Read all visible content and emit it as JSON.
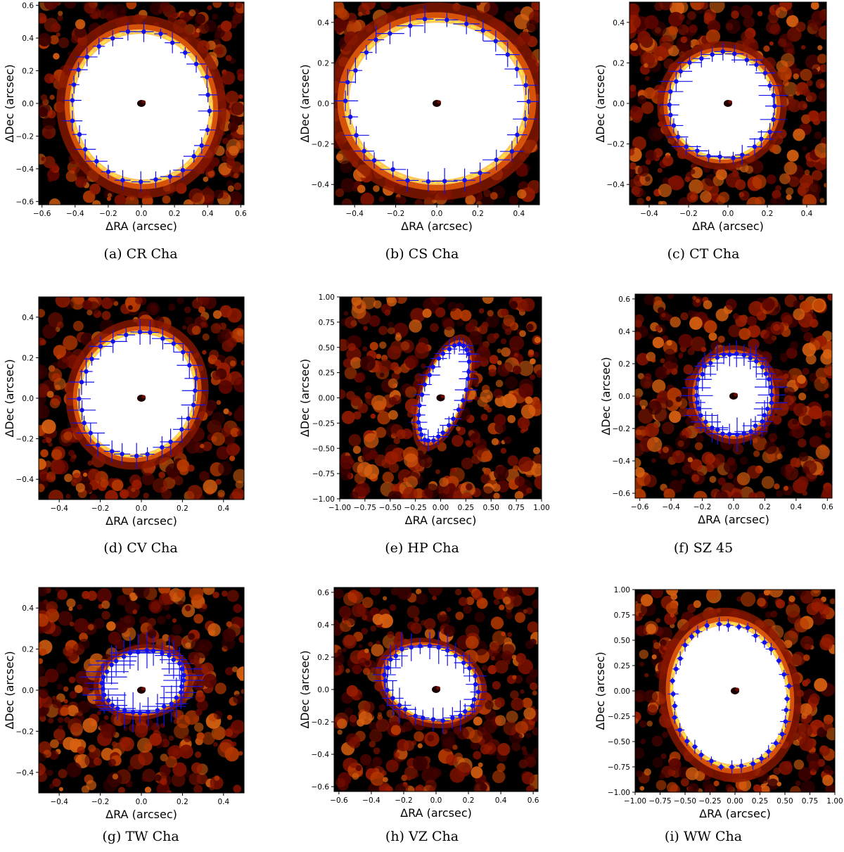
{
  "colors": {
    "ellipse": "#ffef3a",
    "points": "#1010ee",
    "cmap_dark": "#000000",
    "cmap_mid": "#b51a00",
    "cmap_light": "#ffffff"
  },
  "chart_data": [
    {
      "type": "image-scatter",
      "caption": "(a) CR Cha",
      "xlabel": "ΔRA (arcsec)",
      "ylabel": "ΔDec (arcsec)",
      "xlim": [
        -0.62,
        0.62
      ],
      "ylim": [
        -0.62,
        0.62
      ],
      "xticks": [
        -0.6,
        -0.4,
        -0.2,
        0.0,
        0.2,
        0.4,
        0.6
      ],
      "yticks": [
        -0.6,
        -0.4,
        -0.2,
        0.0,
        0.2,
        0.4,
        0.6
      ],
      "ellipse": {
        "center": [
          0.0,
          -0.02
        ],
        "a": 0.42,
        "b": 0.46,
        "angle_deg": 10
      },
      "points": 28,
      "xerr": 0.05,
      "yerr": 0.05
    },
    {
      "type": "image-scatter",
      "caption": "(b) CS Cha",
      "xlabel": "ΔRA (arcsec)",
      "ylabel": "ΔDec (arcsec)",
      "xlim": [
        -0.5,
        0.5
      ],
      "ylim": [
        -0.5,
        0.5
      ],
      "xticks": [
        -0.4,
        -0.2,
        0.0,
        0.2,
        0.4
      ],
      "yticks": [
        -0.4,
        -0.2,
        0.0,
        0.2,
        0.4
      ],
      "ellipse": {
        "center": [
          0.0,
          0.01
        ],
        "a": 0.44,
        "b": 0.4,
        "angle_deg": 0
      },
      "points": 30,
      "xerr": 0.05,
      "yerr": 0.05
    },
    {
      "type": "image-scatter",
      "caption": "(c) CT Cha",
      "xlabel": "ΔRA (arcsec)",
      "ylabel": "ΔDec (arcsec)",
      "xlim": [
        -0.5,
        0.5
      ],
      "ylim": [
        -0.5,
        0.5
      ],
      "xticks": [
        -0.4,
        -0.2,
        0.0,
        0.2,
        0.4
      ],
      "yticks": [
        -0.4,
        -0.2,
        0.0,
        0.2,
        0.4
      ],
      "ellipse": {
        "center": [
          -0.03,
          -0.01
        ],
        "a": 0.27,
        "b": 0.26,
        "angle_deg": -15
      },
      "points": 28,
      "xerr": 0.06,
      "yerr": 0.04
    },
    {
      "type": "image-scatter",
      "caption": "(d) CV Cha",
      "xlabel": "ΔRA (arcsec)",
      "ylabel": "ΔDec (arcsec)",
      "xlim": [
        -0.5,
        0.5
      ],
      "ylim": [
        -0.5,
        0.5
      ],
      "xticks": [
        -0.4,
        -0.2,
        0.0,
        0.2,
        0.4
      ],
      "yticks": [
        -0.4,
        -0.2,
        0.0,
        0.2,
        0.4
      ],
      "ellipse": {
        "center": [
          -0.02,
          0.02
        ],
        "a": 0.28,
        "b": 0.31,
        "angle_deg": -25
      },
      "points": 28,
      "xerr": 0.05,
      "yerr": 0.05
    },
    {
      "type": "image-scatter",
      "caption": "(e) HP Cha",
      "xlabel": "ΔRA (arcsec)",
      "ylabel": "ΔDec (arcsec)",
      "xlim": [
        -1.0,
        1.0
      ],
      "ylim": [
        -1.0,
        1.0
      ],
      "xticks": [
        -1.0,
        -0.75,
        -0.5,
        -0.25,
        0.0,
        0.25,
        0.5,
        0.75,
        1.0
      ],
      "yticks": [
        -1.0,
        -0.75,
        -0.5,
        -0.25,
        0.0,
        0.25,
        0.5,
        0.75,
        1.0
      ],
      "ellipse": {
        "center": [
          0.03,
          0.05
        ],
        "a": 0.2,
        "b": 0.5,
        "angle_deg": -20
      },
      "points": 30,
      "xerr": 0.08,
      "yerr": 0.08
    },
    {
      "type": "image-scatter",
      "caption": "(f) SZ 45",
      "xlabel": "ΔRA (arcsec)",
      "ylabel": "ΔDec (arcsec)",
      "xlim": [
        -0.63,
        0.63
      ],
      "ylim": [
        -0.63,
        0.63
      ],
      "xticks": [
        -0.6,
        -0.4,
        -0.2,
        0.0,
        0.2,
        0.4,
        0.6
      ],
      "yticks": [
        -0.6,
        -0.4,
        -0.2,
        0.0,
        0.2,
        0.4,
        0.6
      ],
      "ellipse": {
        "center": [
          0.0,
          0.01
        ],
        "a": 0.24,
        "b": 0.25,
        "angle_deg": 0
      },
      "points": 34,
      "xerr": 0.08,
      "yerr": 0.08
    },
    {
      "type": "image-scatter",
      "caption": "(g) TW Cha",
      "xlabel": "ΔRA (arcsec)",
      "ylabel": "ΔDec (arcsec)",
      "xlim": [
        -0.5,
        0.5
      ],
      "ylim": [
        -0.5,
        0.5
      ],
      "xticks": [
        -0.4,
        -0.2,
        0.0,
        0.2,
        0.4
      ],
      "yticks": [
        -0.4,
        -0.2,
        0.0,
        0.2,
        0.4
      ],
      "ellipse": {
        "center": [
          0.01,
          0.04
        ],
        "a": 0.2,
        "b": 0.15,
        "angle_deg": 10
      },
      "points": 32,
      "xerr": 0.09,
      "yerr": 0.07
    },
    {
      "type": "image-scatter",
      "caption": "(h) VZ Cha",
      "xlabel": "ΔRA (arcsec)",
      "ylabel": "ΔDec (arcsec)",
      "xlim": [
        -0.63,
        0.63
      ],
      "ylim": [
        -0.63,
        0.63
      ],
      "xticks": [
        -0.6,
        -0.4,
        -0.2,
        0.0,
        0.2,
        0.4,
        0.6
      ],
      "yticks": [
        -0.6,
        -0.4,
        -0.2,
        0.0,
        0.2,
        0.4,
        0.6
      ],
      "ellipse": {
        "center": [
          -0.03,
          0.04
        ],
        "a": 0.29,
        "b": 0.22,
        "angle_deg": -20
      },
      "points": 30,
      "xerr": 0.06,
      "yerr": 0.08
    },
    {
      "type": "image-scatter",
      "caption": "(i) WW Cha",
      "xlabel": "ΔRA (arcsec)",
      "ylabel": "ΔDec (arcsec)",
      "xlim": [
        -1.0,
        1.0
      ],
      "ylim": [
        -1.0,
        1.0
      ],
      "xticks": [
        -1.0,
        -0.75,
        -0.5,
        -0.25,
        0.0,
        0.25,
        0.5,
        0.75,
        1.0
      ],
      "yticks": [
        -1.0,
        -0.75,
        -0.5,
        -0.25,
        0.0,
        0.25,
        0.5,
        0.75,
        1.0
      ],
      "ellipse": {
        "center": [
          -0.05,
          -0.04
        ],
        "a": 0.58,
        "b": 0.71,
        "angle_deg": 10
      },
      "points": 36,
      "xerr": 0.04,
      "yerr": 0.05
    }
  ]
}
